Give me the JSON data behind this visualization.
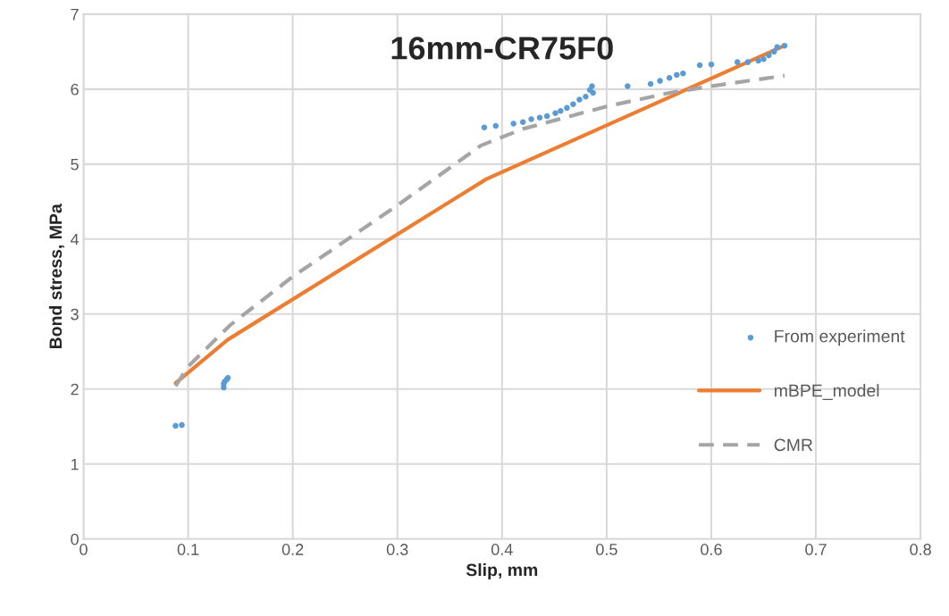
{
  "chart_data": {
    "type": "scatter",
    "title": "16mm-CR75F0",
    "xlabel": "Slip, mm",
    "ylabel": "Bond stress, MPa",
    "xlim": [
      0,
      0.8
    ],
    "xticks": [
      0,
      0.1,
      0.2,
      0.3,
      0.4,
      0.5,
      0.6,
      0.7,
      0.8
    ],
    "ylim": [
      0,
      7
    ],
    "yticks": [
      0,
      1,
      2,
      3,
      4,
      5,
      6,
      7
    ],
    "grid": true,
    "legend": "right",
    "series": [
      {
        "name": "From experiment",
        "marker": "circle",
        "color": "#5b9bd5",
        "x": [
          0.088,
          0.094,
          0.134,
          0.134,
          0.135,
          0.137,
          0.138,
          0.383,
          0.394,
          0.411,
          0.42,
          0.428,
          0.436,
          0.443,
          0.451,
          0.456,
          0.462,
          0.468,
          0.474,
          0.48,
          0.484,
          0.486,
          0.487,
          0.52,
          0.542,
          0.551,
          0.56,
          0.567,
          0.573,
          0.589,
          0.6,
          0.625,
          0.635,
          0.645,
          0.65,
          0.655,
          0.66,
          0.663,
          0.67
        ],
        "values": [
          1.51,
          1.52,
          2.02,
          2.07,
          2.1,
          2.13,
          2.15,
          5.49,
          5.51,
          5.54,
          5.56,
          5.6,
          5.62,
          5.64,
          5.68,
          5.71,
          5.75,
          5.8,
          5.86,
          5.9,
          5.99,
          6.04,
          5.95,
          6.04,
          6.07,
          6.11,
          6.15,
          6.19,
          6.21,
          6.32,
          6.33,
          6.36,
          6.36,
          6.38,
          6.4,
          6.45,
          6.5,
          6.56,
          6.58
        ]
      },
      {
        "name": "mBPE_model",
        "type": "line",
        "line_style": "solid",
        "color": "#ed7d31",
        "x": [
          0.088,
          0.138,
          0.385,
          0.67
        ],
        "values": [
          2.08,
          2.66,
          4.8,
          6.58
        ]
      },
      {
        "name": "CMR",
        "type": "line",
        "line_style": "dashed",
        "color": "#a5a5a5",
        "x": [
          0.088,
          0.1,
          0.14,
          0.2,
          0.3,
          0.38,
          0.42,
          0.5,
          0.56,
          0.6,
          0.67
        ],
        "values": [
          2.04,
          2.3,
          2.85,
          3.5,
          4.45,
          5.25,
          5.47,
          5.77,
          5.95,
          6.04,
          6.18
        ]
      }
    ]
  }
}
